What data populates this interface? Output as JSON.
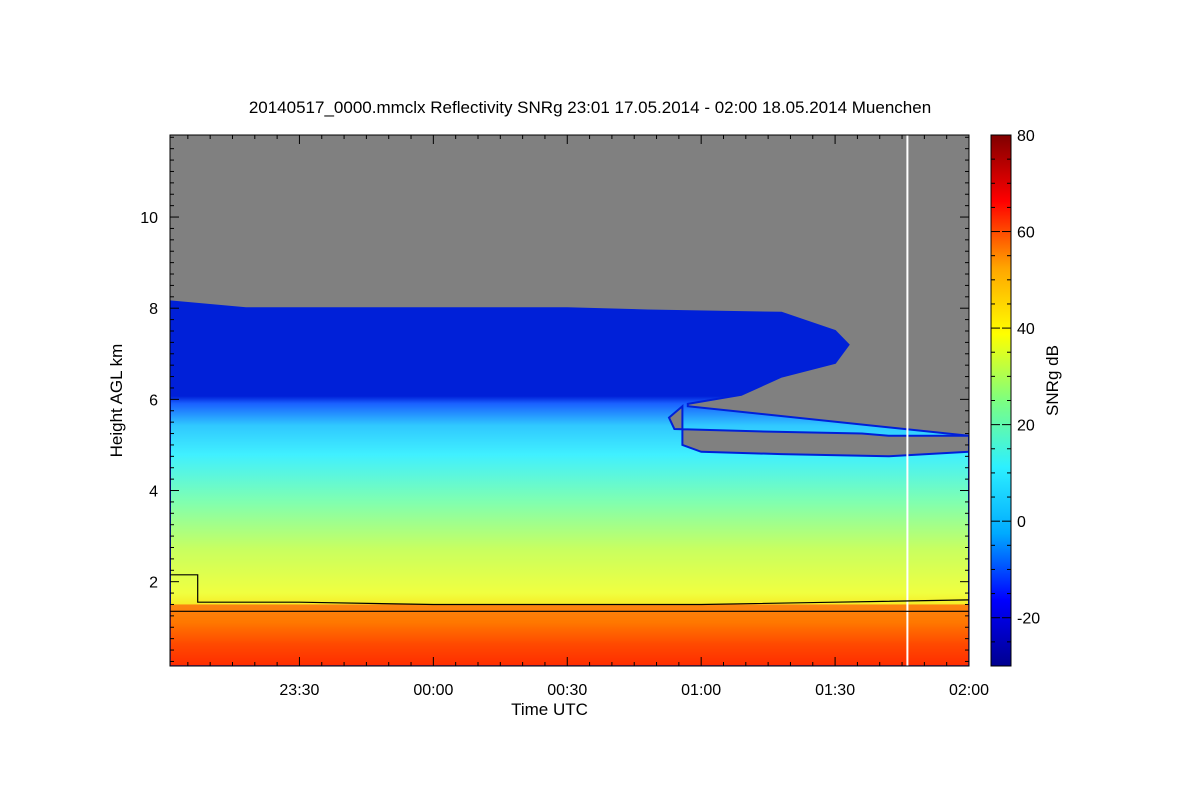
{
  "chart_data": {
    "type": "heatmap",
    "title": "20140517_0000.mmclx Reflectivity SNRg   23:01 17.05.2014 - 02:00 18.05.2014 Muenchen",
    "xlabel": "Time UTC",
    "ylabel": "Height AGL km",
    "x_range_hours": [
      23.0167,
      26.0
    ],
    "y_range_km": [
      0.15,
      11.8
    ],
    "x_ticks": [
      {
        "label": "23:30",
        "value": 23.5
      },
      {
        "label": "00:00",
        "value": 24.0
      },
      {
        "label": "00:30",
        "value": 24.5
      },
      {
        "label": "01:00",
        "value": 25.0
      },
      {
        "label": "01:30",
        "value": 25.5
      },
      {
        "label": "02:00",
        "value": 26.0
      }
    ],
    "y_ticks": [
      2,
      4,
      6,
      8,
      10
    ],
    "colorbar": {
      "label": "SNRg dB",
      "range": [
        -30,
        80
      ],
      "ticks": [
        -20,
        0,
        20,
        40,
        60,
        80
      ],
      "colors": [
        "#00008f",
        "#0000ff",
        "#00aaff",
        "#2df0ff",
        "#7dff80",
        "#ffff00",
        "#ffa500",
        "#ff0000",
        "#800000"
      ]
    },
    "no_signal_color": "#808080",
    "cloud_top_km": [
      [
        23.0167,
        8.15
      ],
      [
        23.3,
        8.0
      ],
      [
        23.6,
        8.0
      ],
      [
        24.0,
        8.0
      ],
      [
        24.5,
        8.0
      ],
      [
        24.8,
        7.95
      ],
      [
        25.3,
        7.9
      ],
      [
        25.5,
        7.5
      ],
      [
        25.55,
        7.2
      ],
      [
        25.5,
        6.8
      ],
      [
        25.3,
        6.5
      ],
      [
        25.15,
        6.1
      ],
      [
        24.95,
        5.9
      ]
    ],
    "cloud_gap_km": [
      [
        24.93,
        5.85
      ],
      [
        24.88,
        5.6
      ],
      [
        24.9,
        5.35
      ],
      [
        25.2,
        5.3
      ],
      [
        25.6,
        5.25
      ],
      [
        25.7,
        5.2
      ],
      [
        26.0,
        5.2
      ],
      [
        26.0,
        4.85
      ],
      [
        25.7,
        4.75
      ],
      [
        25.3,
        4.8
      ],
      [
        25.0,
        4.85
      ],
      [
        24.93,
        5.0
      ]
    ],
    "strong_layer_top_km": 1.5,
    "lines": {
      "mixing_layer": [
        [
          23.0167,
          2.15
        ],
        [
          23.12,
          2.15
        ],
        [
          23.12,
          1.55
        ],
        [
          23.5,
          1.55
        ],
        [
          24.0,
          1.5
        ],
        [
          24.5,
          1.5
        ],
        [
          25.0,
          1.5
        ],
        [
          25.5,
          1.55
        ],
        [
          26.0,
          1.6
        ]
      ],
      "cloud_base_ref": [
        [
          23.0167,
          1.35
        ],
        [
          26.0,
          1.35
        ]
      ],
      "data_gap_marker_time": 25.77
    }
  }
}
